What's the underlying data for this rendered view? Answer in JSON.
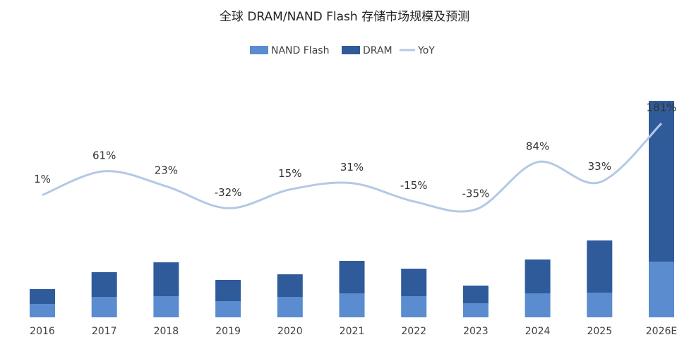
{
  "chart_data": {
    "type": "bar",
    "stacked": true,
    "title": "全球 DRAM/NAND Flash 存储市场规模及预测",
    "categories": [
      "2016",
      "2017",
      "2018",
      "2019",
      "2020",
      "2021",
      "2022",
      "2023",
      "2024",
      "2025",
      "2026E"
    ],
    "series": [
      {
        "name": "NAND Flash",
        "color": "#5a8ccf",
        "values": [
          19,
          29,
          30,
          23,
          29,
          34,
          30,
          20,
          34,
          35,
          79
        ]
      },
      {
        "name": "DRAM",
        "color": "#2f5b9b",
        "values": [
          21,
          35,
          48,
          30,
          32,
          46,
          39,
          25,
          48,
          74,
          228
        ]
      },
      {
        "name": "YoY",
        "color": "#b4c8e6",
        "type": "line",
        "axis": "y2",
        "values": [
          1,
          61,
          23,
          -32,
          15,
          31,
          -15,
          -35,
          84,
          33,
          181
        ],
        "value_labels": [
          "1%",
          "61%",
          "23%",
          "-32%",
          "15%",
          "31%",
          "-15%",
          "-35%",
          "84%",
          "33%",
          "181%"
        ]
      }
    ],
    "ylim": [
      0,
      310
    ],
    "y2lim": [
      -306,
      243
    ],
    "legend": "top"
  }
}
